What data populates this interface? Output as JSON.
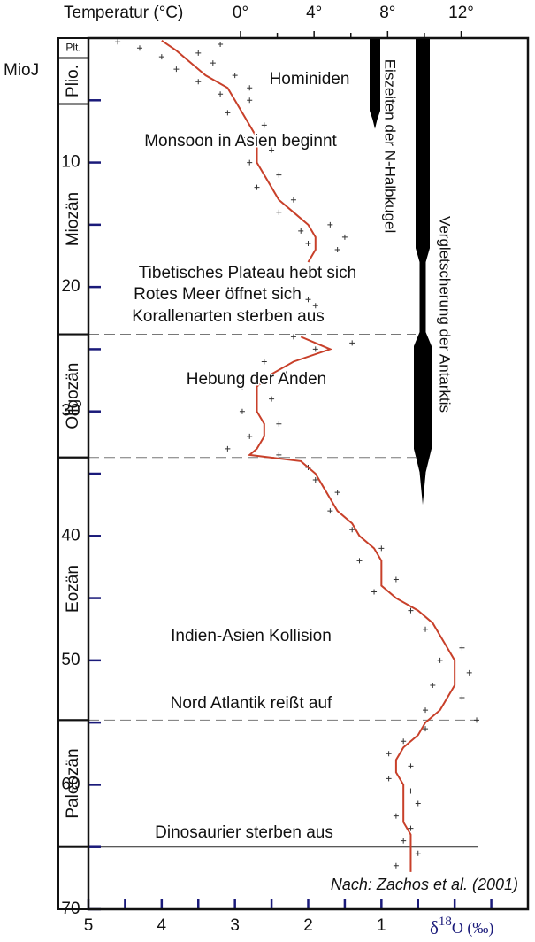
{
  "chart_data": {
    "type": "scatter",
    "x2label": "Temperatur (°C)",
    "x2lim": [
      -8.27,
      15.63
    ],
    "x2ticks": [
      {
        "value": 0,
        "label": "0°"
      },
      {
        "value": 4,
        "label": "4°"
      },
      {
        "value": 8,
        "label": "8°"
      },
      {
        "value": 12,
        "label": "12°"
      }
    ],
    "x2_minor_ticks": [
      2,
      6,
      10
    ],
    "xlim": [
      5,
      -1
    ],
    "xticks": [
      5,
      4,
      3,
      2,
      1
    ],
    "x_minor_ticks": [
      4.5,
      3.5,
      2.5,
      1.5,
      0.5,
      0,
      -0.5
    ],
    "xlabel_parts": [
      "δ",
      "18",
      "O (‰)"
    ],
    "ylabel": "MioJ",
    "ylim": [
      0,
      70
    ],
    "y_inverted": true,
    "yticks": [
      10,
      20,
      30,
      40,
      50,
      60,
      70
    ],
    "y_minor_ticks": [
      5,
      15,
      25,
      35,
      45,
      55,
      65
    ],
    "epochs": [
      {
        "label": "Plt.",
        "start": 0,
        "end": 1.6
      },
      {
        "label": "Plio.",
        "start": 1.6,
        "end": 5.3
      },
      {
        "label": "Miozän",
        "start": 5.3,
        "end": 23.8
      },
      {
        "label": "Oligozän",
        "start": 23.8,
        "end": 33.7
      },
      {
        "label": "Eozän",
        "start": 33.7,
        "end": 54.8
      },
      {
        "label": "Paleozän",
        "start": 54.8,
        "end": 65
      }
    ],
    "ice_sheets": [
      {
        "label": "Eiszeiten der N-Halbkugel",
        "start": 0,
        "end": 7.3
      },
      {
        "label": "Vergletscherung der Antarktis",
        "start": 0,
        "end": 37.5
      }
    ],
    "annotations": [
      "Hominiden",
      "Monsoon in Asien beginnt",
      "Tibetisches Plateau hebt sich",
      "Rotes Meer öffnet sich",
      "Korallenarten sterben aus",
      "Hebung der Anden",
      "Indien-Asien Kollision",
      "Nord Atlantik reißt auf",
      "Dinosaurier sterben aus"
    ],
    "source": "Nach: Zachos et al. (2001)",
    "series": [
      {
        "type": "scatter",
        "color": "#333333",
        "x": [
          4.6,
          3.2,
          4.3,
          3.5,
          4.0,
          3.3,
          3.8,
          3.0,
          3.5,
          2.8,
          3.2,
          2.8,
          3.1,
          2.6,
          2.9,
          2.5,
          2.8,
          2.4,
          2.7,
          2.2,
          2.4,
          1.7,
          2.1,
          1.5,
          2.0,
          1.6,
          2.0,
          1.9,
          2.2,
          1.4,
          1.9,
          2.6,
          2.3,
          2.9,
          2.5,
          2.9,
          2.4,
          2.8,
          3.1,
          2.4,
          2.0,
          1.9,
          1.6,
          1.7,
          1.4,
          1.0,
          1.3,
          0.8,
          1.1,
          0.6,
          0.4,
          -0.1,
          0.2,
          -0.2,
          0.3,
          -0.1,
          0.4,
          -0.3,
          0.4,
          0.7,
          0.9,
          0.6,
          0.9,
          0.6,
          0.5,
          0.8,
          0.6,
          0.7,
          0.5,
          0.8
        ],
        "values": [
          0.3,
          0.5,
          0.8,
          1.2,
          1.5,
          2,
          2.5,
          3,
          3.5,
          4,
          4.5,
          5,
          6,
          7,
          8,
          9,
          10,
          11,
          12,
          13,
          14,
          15,
          15.5,
          16,
          16.5,
          17,
          21,
          21.5,
          24,
          24.5,
          25,
          26,
          27,
          28,
          29,
          30,
          31,
          32,
          33,
          33.5,
          34.5,
          35.5,
          36.5,
          38,
          39.5,
          41,
          42,
          43.5,
          44.5,
          46,
          47.5,
          49,
          50,
          51,
          52,
          53,
          54,
          54.8,
          55.5,
          56.5,
          57.5,
          58.5,
          59.5,
          60.5,
          61.5,
          62.5,
          63.5,
          64.5,
          65.5,
          66.5
        ]
      },
      {
        "type": "line",
        "color": "#c8402a",
        "x": [
          4.0,
          3.8,
          3.6,
          3.4,
          3.1,
          3.0,
          2.9,
          2.8,
          2.7,
          2.7,
          2.7,
          2.6,
          2.5,
          2.4,
          2.2,
          2.0,
          1.9,
          1.9,
          2.0,
          null,
          2.1,
          1.7,
          2.2,
          2.5,
          2.7,
          2.7,
          2.7,
          2.6,
          2.6,
          2.7,
          2.8,
          2.1,
          1.9,
          1.8,
          1.7,
          1.6,
          1.4,
          1.3,
          1.1,
          1.0,
          1.0,
          1.0,
          0.8,
          0.5,
          0.3,
          0.2,
          0.1,
          0.0,
          0.0,
          0.0,
          0.1,
          0.2,
          0.4,
          0.5,
          0.7,
          0.8,
          0.8,
          0.7,
          0.7,
          0.7,
          0.7,
          0.6,
          0.6,
          0.6,
          0.6
        ],
        "values": [
          0.2,
          1,
          2,
          3,
          4,
          5,
          6,
          7,
          8,
          9,
          10,
          11,
          12,
          13,
          14,
          15,
          16,
          17,
          18,
          null,
          24,
          25,
          26,
          27,
          28,
          29,
          30,
          31,
          32,
          33,
          33.5,
          34,
          35,
          36,
          37,
          38,
          39,
          40,
          41,
          42,
          43,
          44,
          45,
          46,
          47,
          48,
          49,
          50,
          51,
          52,
          53,
          54,
          55,
          56,
          57,
          58,
          59,
          60,
          61,
          62,
          63,
          64,
          65,
          66,
          67
        ]
      }
    ]
  }
}
